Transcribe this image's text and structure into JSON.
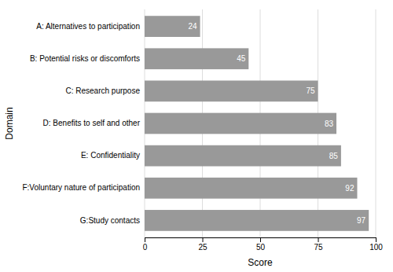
{
  "chart_data": {
    "type": "bar",
    "orientation": "horizontal",
    "categories": [
      "A: Alternatives to participation",
      "B: Potential risks or discomforts",
      "C: Research purpose",
      "D: Benefits to self and other",
      "E: Confidentiality",
      "F:Voluntary nature of participation",
      "G:Study contacts"
    ],
    "values": [
      24,
      45,
      75,
      83,
      85,
      92,
      97
    ],
    "color": "#999999",
    "xlabel": "Score",
    "ylabel": "Domain",
    "xlim": [
      0,
      100
    ],
    "xticks": [
      0,
      25,
      50,
      75,
      100
    ],
    "grid": true,
    "data_labels": true
  }
}
